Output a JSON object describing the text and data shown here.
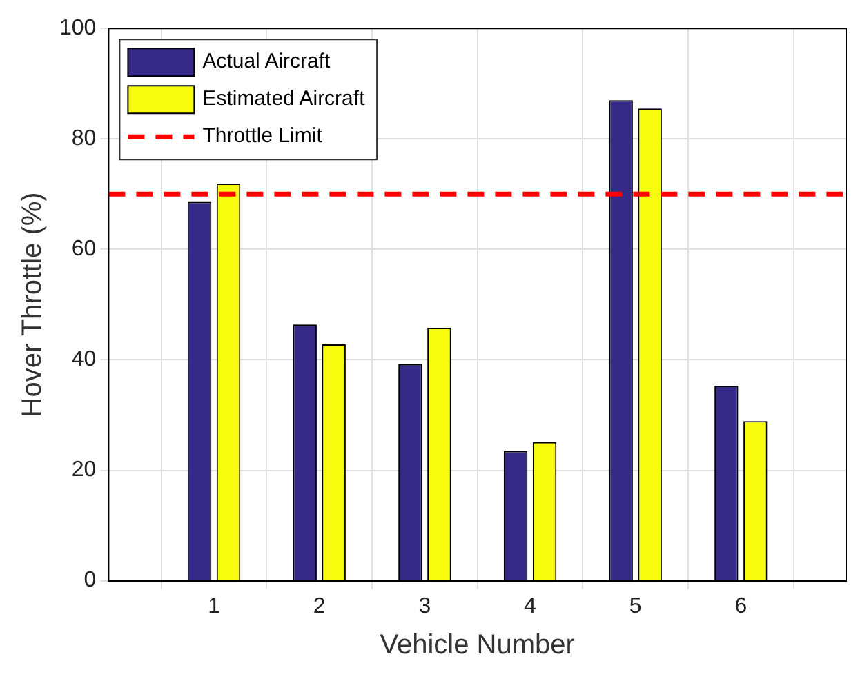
{
  "chart_data": {
    "type": "bar",
    "xlabel": "Vehicle Number",
    "ylabel": "Hover Throttle (%)",
    "x": [
      1,
      2,
      3,
      4,
      5,
      6
    ],
    "xlim": [
      0,
      7
    ],
    "xticks": [
      1,
      2,
      3,
      4,
      5,
      6
    ],
    "ylim": [
      0,
      100
    ],
    "yticks": [
      0,
      20,
      40,
      60,
      80,
      100
    ],
    "series": [
      {
        "name": "Actual Aircraft",
        "color": "#352a87",
        "values": [
          68.6,
          46.4,
          39.2,
          23.5,
          87.0,
          35.3
        ]
      },
      {
        "name": "Estimated Aircraft",
        "color": "#f9fb0e",
        "values": [
          71.9,
          42.8,
          45.8,
          25.1,
          85.5,
          28.9
        ]
      }
    ],
    "ref_lines": [
      {
        "axis": "y",
        "value": 70,
        "label": "Throttle Limit",
        "color": "#ff0000",
        "line_style": "dashed"
      }
    ],
    "grid": true,
    "legend": "top left"
  }
}
